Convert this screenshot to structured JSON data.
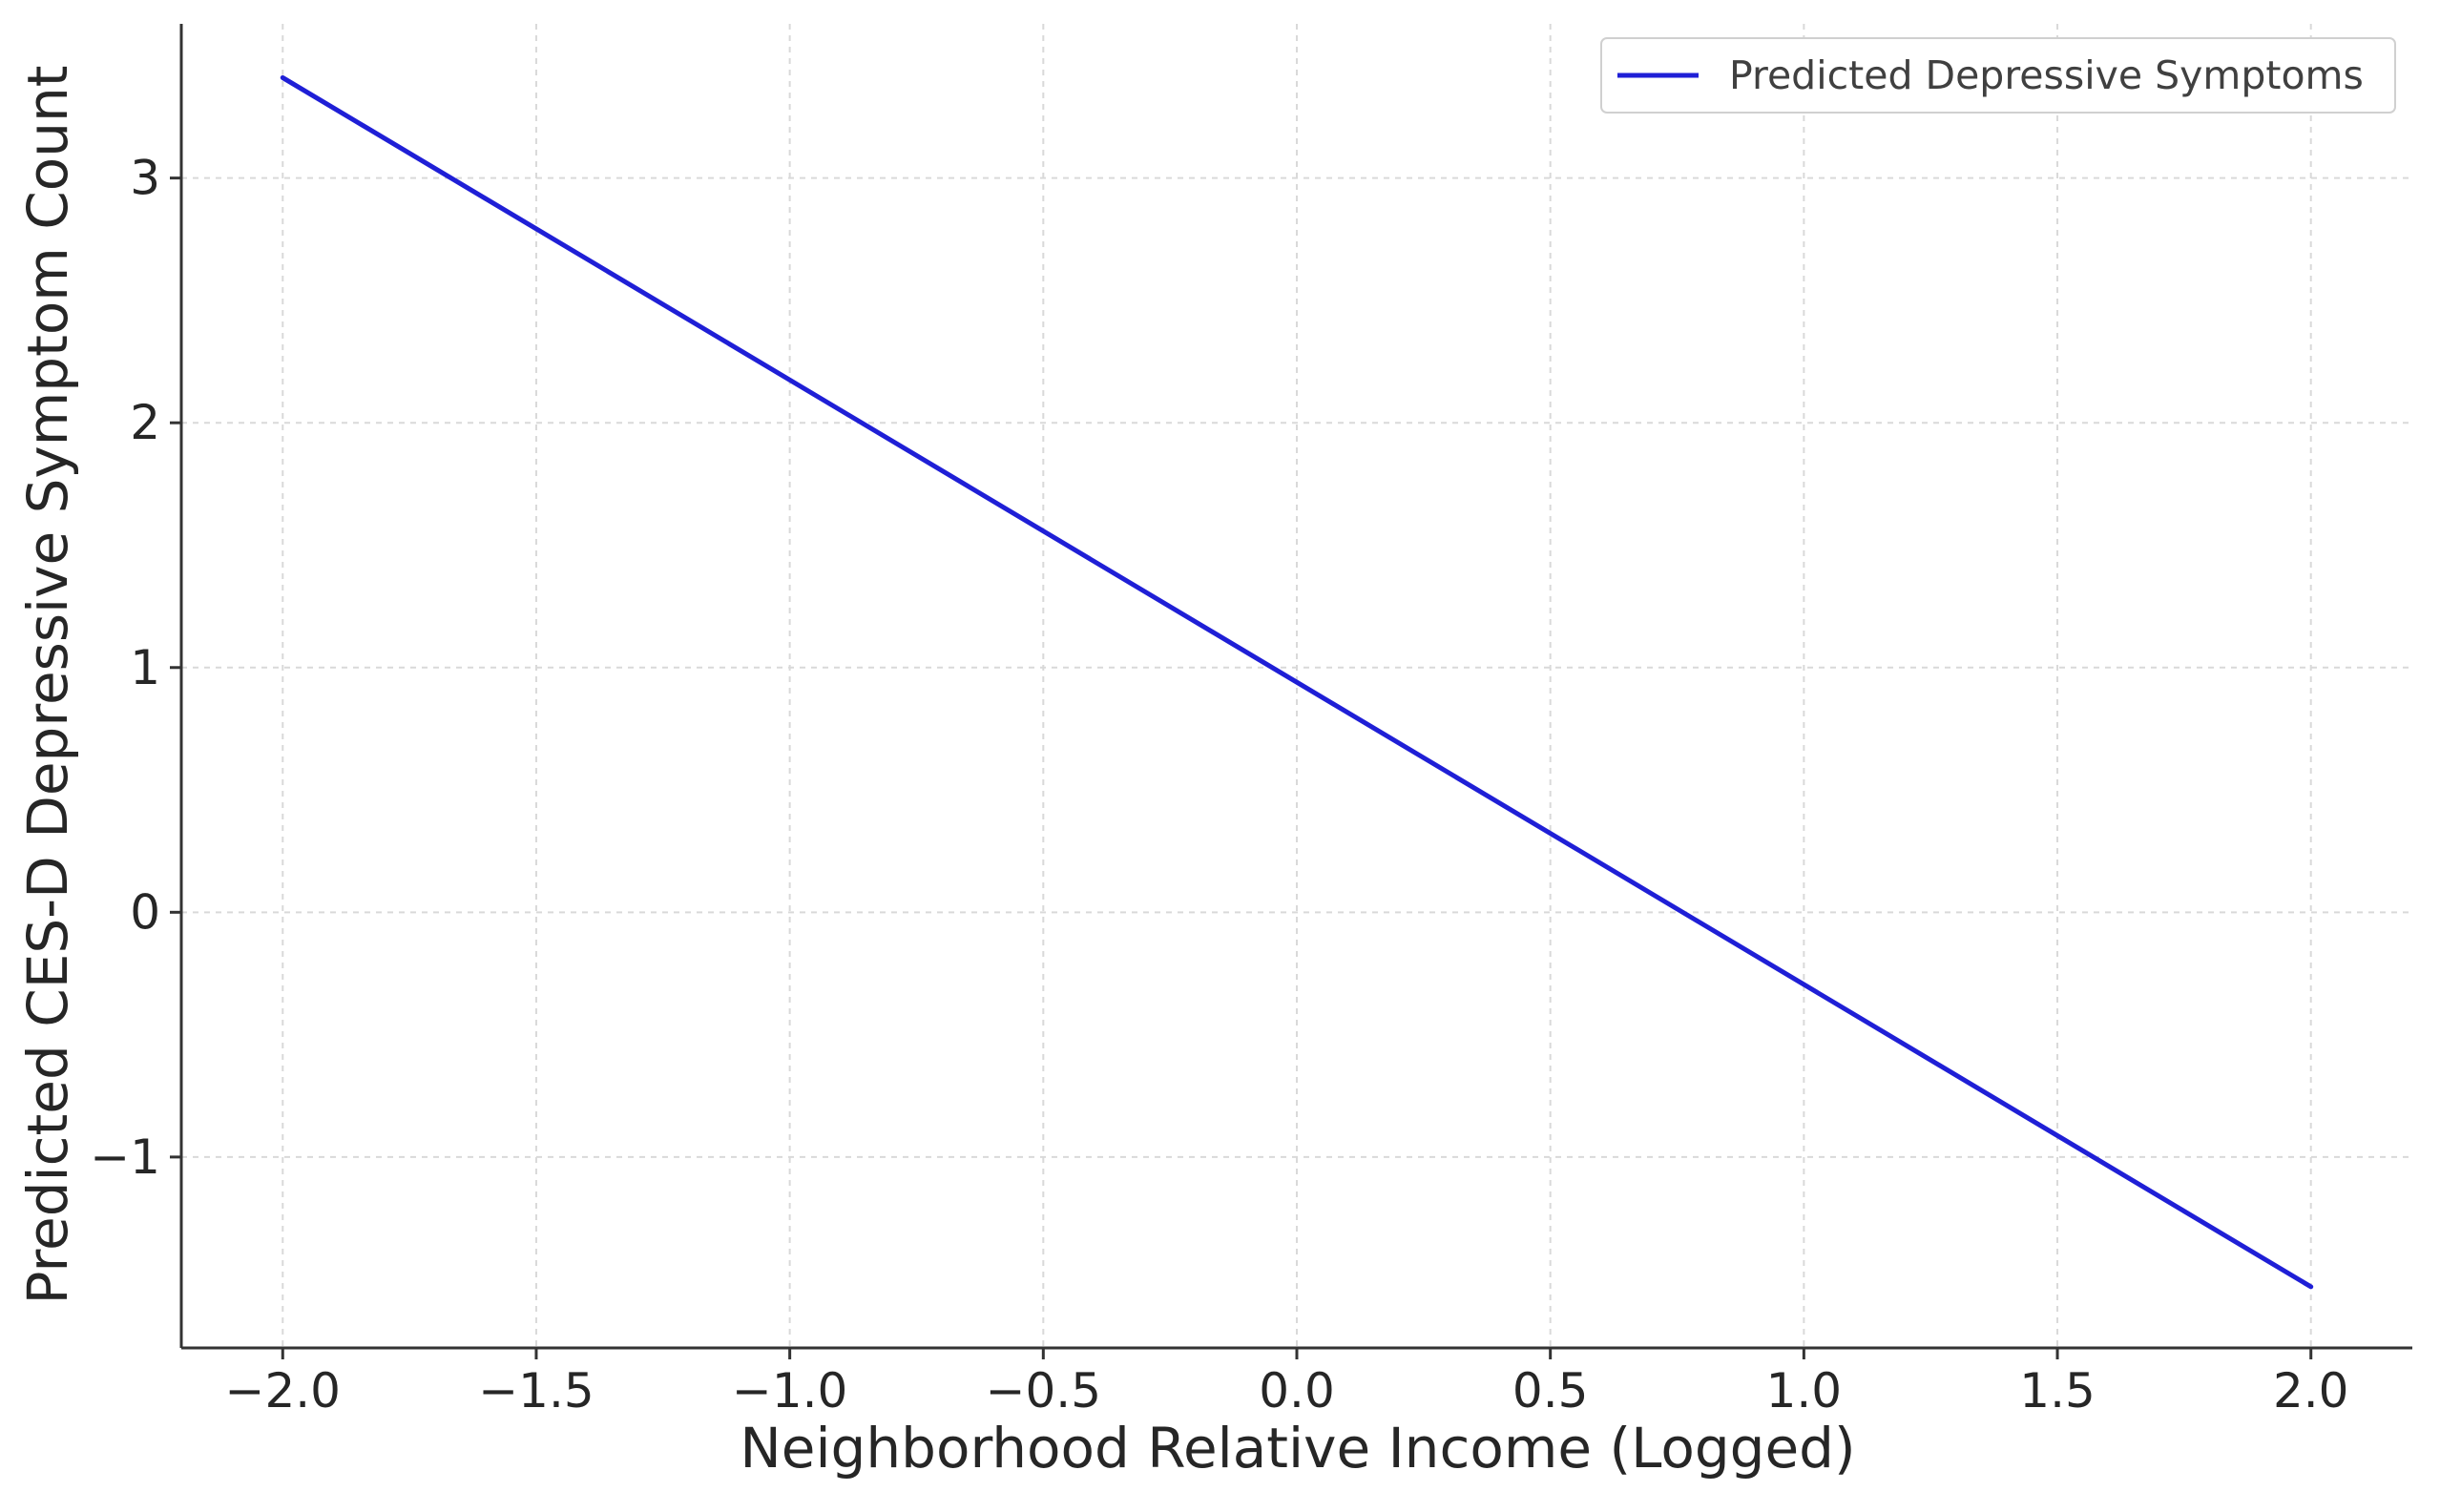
{
  "chart_data": {
    "type": "line",
    "title": "",
    "xlabel": "Neighborhood Relative Income (Logged)",
    "ylabel": "Predicted CES-D Depressive Symptom Count",
    "xlim": [
      -2.2,
      2.2
    ],
    "ylim": [
      -1.78,
      3.63
    ],
    "x_ticks": [
      -2.0,
      -1.5,
      -1.0,
      -0.5,
      0.0,
      0.5,
      1.0,
      1.5,
      2.0
    ],
    "x_tick_labels": [
      "−2.0",
      "−1.5",
      "−1.0",
      "−0.5",
      "0.0",
      "0.5",
      "1.0",
      "1.5",
      "2.0"
    ],
    "y_ticks": [
      -1,
      0,
      1,
      2,
      3
    ],
    "y_tick_labels": [
      "−1",
      "0",
      "1",
      "2",
      "3"
    ],
    "grid": true,
    "legend_position": "top-right",
    "series": [
      {
        "name": "Predicted Depressive Symptoms",
        "color": "#1f1fd6",
        "x": [
          -2.0,
          2.0
        ],
        "y": [
          3.41,
          -1.53
        ]
      }
    ]
  }
}
